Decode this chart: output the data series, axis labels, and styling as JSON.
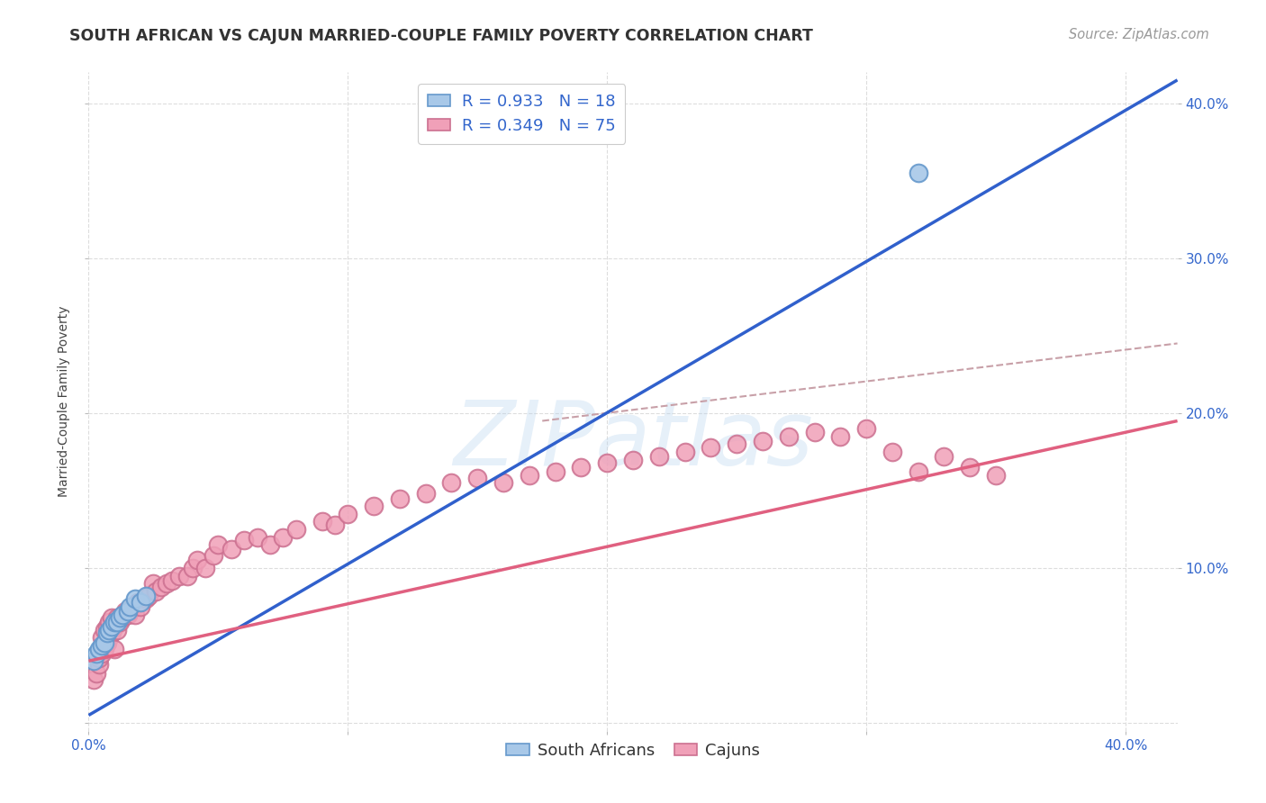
{
  "title": "SOUTH AFRICAN VS CAJUN MARRIED-COUPLE FAMILY POVERTY CORRELATION CHART",
  "source": "Source: ZipAtlas.com",
  "ylabel": "Married-Couple Family Poverty",
  "xlim": [
    0.0,
    0.42
  ],
  "ylim": [
    -0.005,
    0.42
  ],
  "xticks": [
    0.0,
    0.1,
    0.2,
    0.3,
    0.4
  ],
  "yticks": [
    0.0,
    0.1,
    0.2,
    0.3,
    0.4
  ],
  "xticklabels": [
    "0.0%",
    "",
    "",
    "",
    "40.0%"
  ],
  "right_yticklabels": [
    "10.0%",
    "20.0%",
    "30.0%",
    "40.0%"
  ],
  "right_yticks": [
    0.1,
    0.2,
    0.3,
    0.4
  ],
  "legend_label1": "R = 0.933   N = 18",
  "legend_label2": "R = 0.349   N = 75",
  "color_sa": "#a8c8e8",
  "color_cajun": "#f0a0b8",
  "color_sa_line": "#3060cc",
  "color_cajun_line": "#e06080",
  "color_dashed": "#c8a0a8",
  "watermark_text": "ZIPatlas",
  "sa_scatter_x": [
    0.002,
    0.003,
    0.004,
    0.005,
    0.006,
    0.007,
    0.008,
    0.009,
    0.01,
    0.011,
    0.012,
    0.013,
    0.015,
    0.016,
    0.018,
    0.02,
    0.022,
    0.32
  ],
  "sa_scatter_y": [
    0.04,
    0.045,
    0.048,
    0.05,
    0.052,
    0.058,
    0.06,
    0.062,
    0.065,
    0.065,
    0.068,
    0.07,
    0.072,
    0.075,
    0.08,
    0.078,
    0.082,
    0.355
  ],
  "cajun_scatter_x": [
    0.002,
    0.003,
    0.004,
    0.004,
    0.005,
    0.005,
    0.006,
    0.006,
    0.007,
    0.007,
    0.008,
    0.008,
    0.009,
    0.009,
    0.01,
    0.01,
    0.011,
    0.011,
    0.012,
    0.013,
    0.014,
    0.015,
    0.016,
    0.017,
    0.018,
    0.019,
    0.02,
    0.022,
    0.023,
    0.025,
    0.026,
    0.028,
    0.03,
    0.032,
    0.035,
    0.038,
    0.04,
    0.042,
    0.045,
    0.048,
    0.05,
    0.055,
    0.06,
    0.065,
    0.07,
    0.075,
    0.08,
    0.09,
    0.095,
    0.1,
    0.11,
    0.12,
    0.13,
    0.14,
    0.15,
    0.16,
    0.17,
    0.18,
    0.19,
    0.2,
    0.21,
    0.22,
    0.23,
    0.24,
    0.25,
    0.26,
    0.27,
    0.28,
    0.29,
    0.3,
    0.31,
    0.32,
    0.33,
    0.34,
    0.35
  ],
  "cajun_scatter_y": [
    0.028,
    0.032,
    0.038,
    0.042,
    0.045,
    0.055,
    0.048,
    0.06,
    0.052,
    0.062,
    0.055,
    0.065,
    0.058,
    0.068,
    0.048,
    0.062,
    0.06,
    0.068,
    0.065,
    0.068,
    0.072,
    0.07,
    0.072,
    0.075,
    0.07,
    0.078,
    0.075,
    0.08,
    0.082,
    0.09,
    0.085,
    0.088,
    0.09,
    0.092,
    0.095,
    0.095,
    0.1,
    0.105,
    0.1,
    0.108,
    0.115,
    0.112,
    0.118,
    0.12,
    0.115,
    0.12,
    0.125,
    0.13,
    0.128,
    0.135,
    0.14,
    0.145,
    0.148,
    0.155,
    0.158,
    0.155,
    0.16,
    0.162,
    0.165,
    0.168,
    0.17,
    0.172,
    0.175,
    0.178,
    0.18,
    0.182,
    0.185,
    0.188,
    0.185,
    0.19,
    0.175,
    0.162,
    0.172,
    0.165,
    0.16
  ],
  "sa_line_x": [
    0.0,
    0.42
  ],
  "sa_line_y": [
    0.005,
    0.415
  ],
  "cajun_line_x": [
    0.0,
    0.42
  ],
  "cajun_line_y": [
    0.04,
    0.195
  ],
  "dashed_line_x": [
    0.175,
    0.42
  ],
  "dashed_line_y": [
    0.195,
    0.245
  ],
  "background_color": "#ffffff",
  "grid_color": "#dddddd",
  "title_fontsize": 12.5,
  "axis_label_fontsize": 10,
  "tick_fontsize": 11,
  "legend_fontsize": 13,
  "source_fontsize": 10.5
}
